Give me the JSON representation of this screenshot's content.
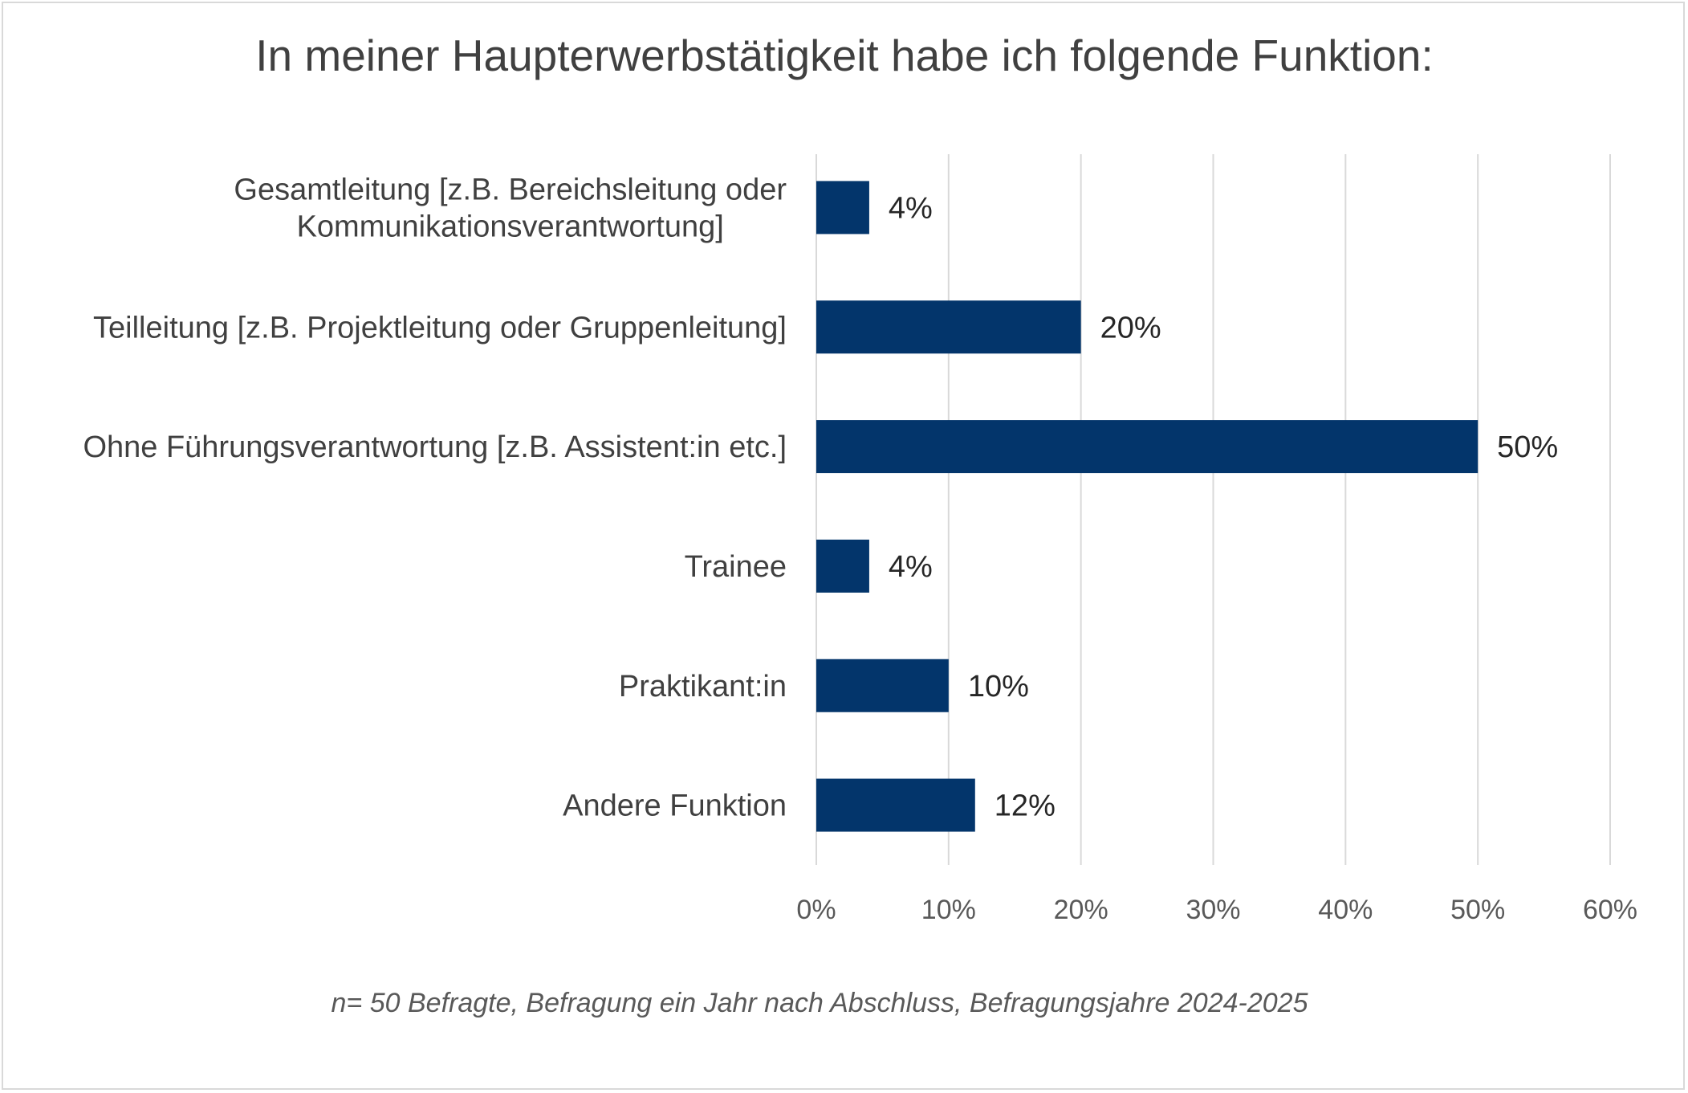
{
  "chart_data": {
    "type": "bar",
    "orientation": "horizontal",
    "title": "In meiner Haupterwerbstätigkeit habe ich folgende Funktion:",
    "categories": [
      [
        "Gesamtleitung [z.B. Bereichsleitung oder",
        "Kommunikationsverantwortung]"
      ],
      [
        "Teilleitung [z.B. Projektleitung oder Gruppenleitung]"
      ],
      [
        "Ohne Führungsverantwortung [z.B. Assistent:in etc.]"
      ],
      [
        "Trainee"
      ],
      [
        "Praktikant:in"
      ],
      [
        "Andere Funktion"
      ]
    ],
    "values": [
      4,
      20,
      50,
      4,
      10,
      12
    ],
    "data_labels": [
      "4%",
      "20%",
      "50%",
      "4%",
      "10%",
      "12%"
    ],
    "xlim": [
      0,
      60
    ],
    "x_ticks": [
      0,
      10,
      20,
      30,
      40,
      50,
      60
    ],
    "x_tick_labels": [
      "0%",
      "10%",
      "20%",
      "30%",
      "40%",
      "50%",
      "60%"
    ],
    "grid": "vertical",
    "legend": "none",
    "bar_color": "#03356B",
    "grid_color": "#d9d9d9",
    "footnote": "n= 50 Befragte, Befragung ein Jahr nach Abschluss, Befragungsjahre 2024-2025"
  }
}
